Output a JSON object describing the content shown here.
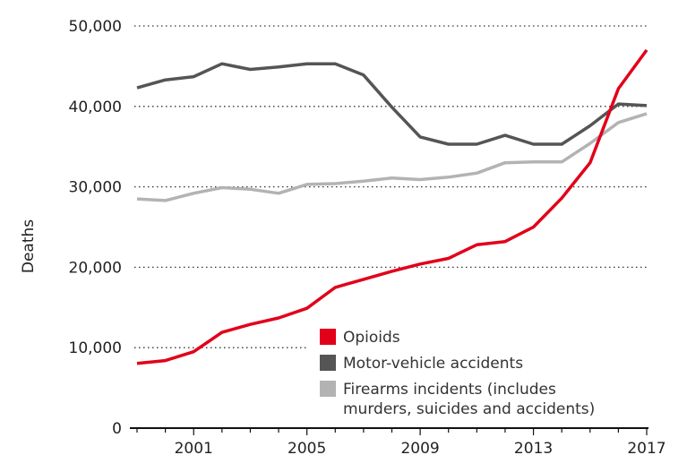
{
  "chart_data": {
    "type": "line",
    "title": "",
    "xlabel": "",
    "ylabel": "Deaths",
    "x": [
      1999,
      2000,
      2001,
      2002,
      2003,
      2004,
      2005,
      2006,
      2007,
      2008,
      2009,
      2010,
      2011,
      2012,
      2013,
      2014,
      2015,
      2016,
      2017
    ],
    "xlim": [
      1999,
      2017
    ],
    "ylim": [
      0,
      50000
    ],
    "xticks": [
      2001,
      2005,
      2009,
      2013,
      2017
    ],
    "xtick_labels": [
      "2001",
      "2005",
      "2009",
      "2013",
      "2017"
    ],
    "yticks": [
      0,
      10000,
      20000,
      30000,
      40000,
      50000
    ],
    "ytick_labels": [
      "0",
      "10,000",
      "20,000",
      "30,000",
      "40,000",
      "50,000"
    ],
    "grid": "horizontal dotted",
    "legend_position": "bottom-center",
    "series": [
      {
        "name": "Opioids",
        "color": "#e2001a",
        "values": [
          8050,
          8400,
          9500,
          11900,
          12900,
          13700,
          14900,
          17500,
          18500,
          19500,
          20400,
          21100,
          22800,
          23200,
          25000,
          28600,
          33000,
          42200,
          47000
        ]
      },
      {
        "name": "Motor-vehicle accidents",
        "color": "#555555",
        "values": [
          42300,
          43300,
          43700,
          45300,
          44600,
          44900,
          45300,
          45300,
          43900,
          39900,
          36200,
          35300,
          35300,
          36400,
          35300,
          35300,
          37600,
          40300,
          40100
        ]
      },
      {
        "name": "Firearms incidents (includes murders, suicides and accidents)",
        "color": "#b3b3b3",
        "legend_lines": [
          "Firearms incidents (includes",
          "murders, suicides and accidents)"
        ],
        "values": [
          28500,
          28300,
          29200,
          29900,
          29700,
          29200,
          30300,
          30400,
          30700,
          31100,
          30900,
          31200,
          31700,
          33000,
          33100,
          33100,
          35400,
          38000,
          39100
        ]
      }
    ]
  }
}
